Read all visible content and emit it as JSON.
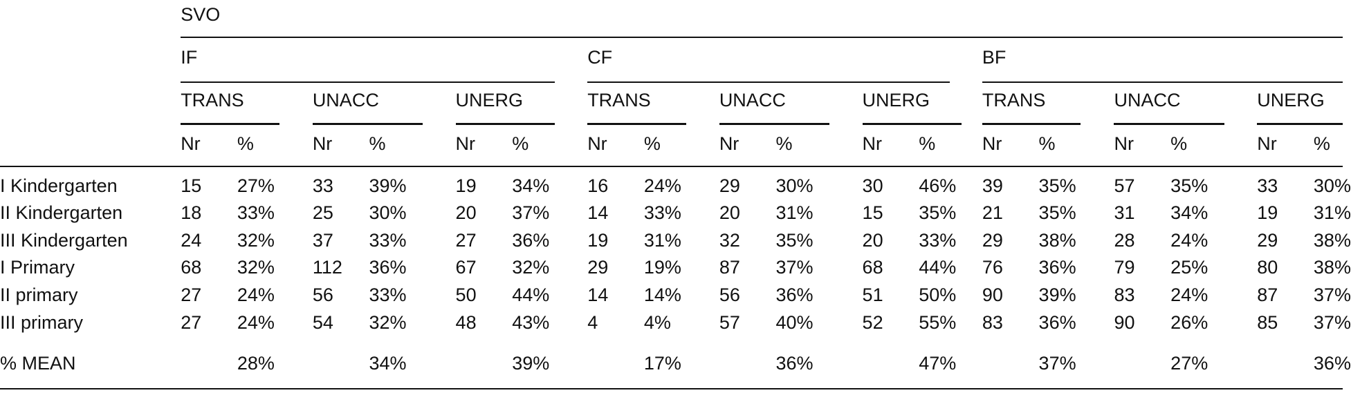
{
  "header": {
    "top": "SVO",
    "groups": [
      {
        "label": "IF",
        "subgroups": [
          {
            "label": "TRANS",
            "columns": [
              "Nr",
              "%"
            ]
          },
          {
            "label": "UNACC",
            "columns": [
              "Nr",
              "%"
            ]
          },
          {
            "label": "UNERG",
            "columns": [
              "Nr",
              "%"
            ]
          }
        ]
      },
      {
        "label": "CF",
        "subgroups": [
          {
            "label": "TRANS",
            "columns": [
              "Nr",
              "%"
            ]
          },
          {
            "label": "UNACC",
            "columns": [
              "Nr",
              "%"
            ]
          },
          {
            "label": "UNERG",
            "columns": [
              "Nr",
              "%"
            ]
          }
        ]
      },
      {
        "label": "BF",
        "subgroups": [
          {
            "label": "TRANS",
            "columns": [
              "Nr",
              "%"
            ]
          },
          {
            "label": "UNACC",
            "columns": [
              "Nr",
              "%"
            ]
          },
          {
            "label": "UNERG",
            "columns": [
              "Nr",
              "%"
            ]
          }
        ]
      }
    ]
  },
  "table": {
    "rows": [
      {
        "label": "I Kindergarten",
        "values": [
          "15",
          "27%",
          "33",
          "39%",
          "19",
          "34%",
          "16",
          "24%",
          "29",
          "30%",
          "30",
          "46%",
          "39",
          "35%",
          "57",
          "35%",
          "33",
          "30%"
        ]
      },
      {
        "label": "II Kindergarten",
        "values": [
          "18",
          "33%",
          "25",
          "30%",
          "20",
          "37%",
          "14",
          "33%",
          "20",
          "31%",
          "15",
          "35%",
          "21",
          "35%",
          "31",
          "34%",
          "19",
          "31%"
        ]
      },
      {
        "label": "III Kindergarten",
        "values": [
          "24",
          "32%",
          "37",
          "33%",
          "27",
          "36%",
          "19",
          "31%",
          "32",
          "35%",
          "20",
          "33%",
          "29",
          "38%",
          "28",
          "24%",
          "29",
          "38%"
        ]
      },
      {
        "label": "I Primary",
        "values": [
          "68",
          "32%",
          "112",
          "36%",
          "67",
          "32%",
          "29",
          "19%",
          "87",
          "37%",
          "68",
          "44%",
          "76",
          "36%",
          "79",
          "25%",
          "80",
          "38%"
        ]
      },
      {
        "label": "II primary",
        "values": [
          "27",
          "24%",
          "56",
          "33%",
          "50",
          "44%",
          "14",
          "14%",
          "56",
          "36%",
          "51",
          "50%",
          "90",
          "39%",
          "83",
          "24%",
          "87",
          "37%"
        ]
      },
      {
        "label": "III primary",
        "values": [
          "27",
          "24%",
          "54",
          "32%",
          "48",
          "43%",
          "4",
          "4%",
          "57",
          "40%",
          "52",
          "55%",
          "83",
          "36%",
          "90",
          "26%",
          "85",
          "37%"
        ]
      }
    ],
    "mean": {
      "label": "% MEAN",
      "values": [
        "28%",
        "34%",
        "39%",
        "17%",
        "36%",
        "47%",
        "37%",
        "27%",
        "36%"
      ]
    }
  }
}
